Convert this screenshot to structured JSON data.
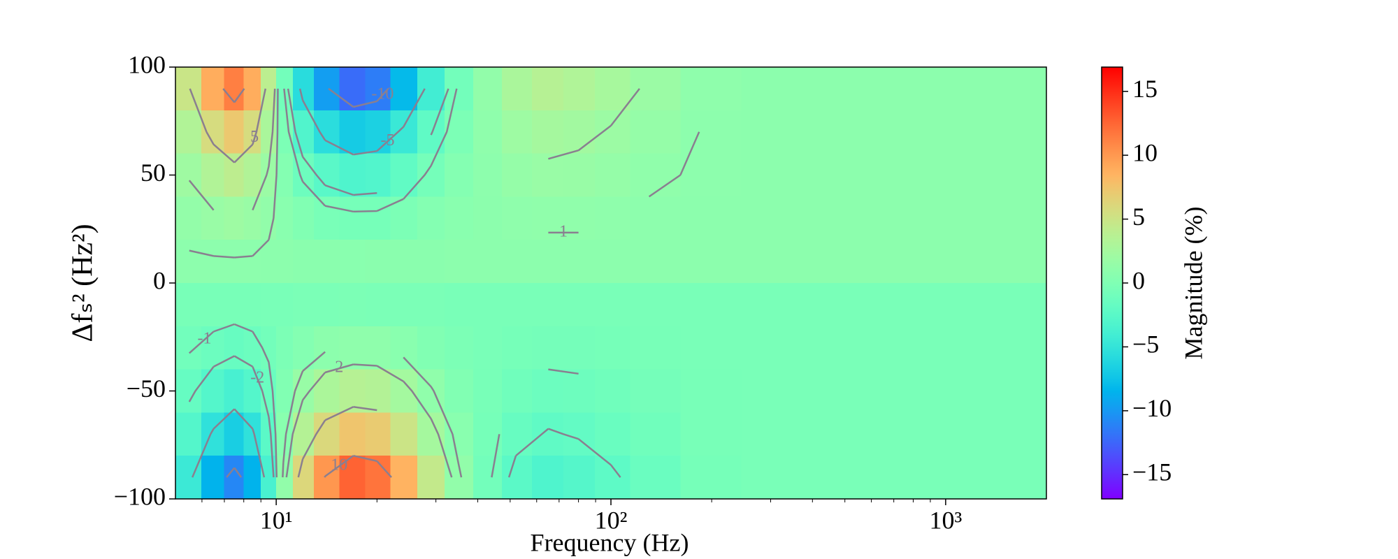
{
  "chart_data": {
    "type": "contour",
    "x_label": "Frequency (Hz)",
    "y_label": "Δfₛ² (Hz²)",
    "colorbar_label": "Magnitude (%)",
    "log_x": true,
    "colormap": "rainbow",
    "contour_color": "#8a7f90",
    "xlim": [
      5,
      2000
    ],
    "ylim": [
      -100,
      100
    ],
    "xticks": [
      {
        "value": 10,
        "label": "10¹"
      },
      {
        "value": 100,
        "label": "10²"
      },
      {
        "value": 1000,
        "label": "10³"
      }
    ],
    "xminorticks": [
      6,
      7,
      8,
      9,
      20,
      30,
      40,
      50,
      60,
      70,
      80,
      90,
      200,
      300,
      400,
      500,
      600,
      700,
      800,
      900
    ],
    "yticks": [
      {
        "value": -100,
        "label": "−100"
      },
      {
        "value": -50,
        "label": "−50"
      },
      0,
      50,
      100
    ],
    "zlim": [
      -16.9,
      16.9
    ],
    "zticks": [
      {
        "value": -15,
        "label": "−15"
      },
      {
        "value": -10,
        "label": "−10"
      },
      {
        "value": -5,
        "label": "−5"
      },
      0,
      5,
      10,
      15
    ],
    "contour_levels": [
      -10,
      -5,
      -2,
      -1,
      1,
      2,
      5,
      10
    ],
    "x": [
      5.5,
      6.5,
      7.5,
      8.5,
      9.5,
      10.5,
      12,
      14,
      17,
      20,
      24,
      29,
      35,
      43,
      52,
      65,
      80,
      100,
      130,
      200,
      300,
      700,
      1500
    ],
    "y": [
      90,
      70,
      50,
      30,
      10,
      -10,
      -30,
      -50,
      -70,
      -90
    ],
    "z": [
      [
        4.9,
        8.9,
        11.3,
        8.9,
        4.0,
        -0.8,
        -5.7,
        -9.7,
        -12.2,
        -11.4,
        -8.1,
        -4.1,
        -0.8,
        1.2,
        2.8,
        3.6,
        3.2,
        2.6,
        1.8,
        1.0,
        0.8,
        0.8,
        0.8
      ],
      [
        3.3,
        5.7,
        7.2,
        5.7,
        2.8,
        -0.2,
        -3.1,
        -5.6,
        -7.0,
        -6.6,
        -4.6,
        -2.1,
        -0.2,
        1.0,
        2.0,
        2.5,
        2.3,
        1.9,
        1.4,
        0.9,
        0.8,
        0.8,
        0.8
      ],
      [
        2.1,
        3.3,
        4.1,
        3.3,
        1.8,
        0.3,
        -1.2,
        -2.5,
        -3.2,
        -3.0,
        -2.0,
        -0.7,
        0.3,
        0.9,
        1.4,
        1.7,
        1.6,
        1.4,
        1.1,
        0.9,
        0.8,
        0.8,
        0.8
      ],
      [
        1.3,
        1.7,
        2.0,
        1.7,
        1.2,
        0.6,
        0.1,
        -0.4,
        -0.6,
        -0.6,
        -0.2,
        0.3,
        0.6,
        0.8,
        1.0,
        1.1,
        1.1,
        1.0,
        0.9,
        0.8,
        0.8,
        0.8,
        0.8
      ],
      [
        0.9,
        0.9,
        0.9,
        0.9,
        0.8,
        0.8,
        0.7,
        0.7,
        0.6,
        0.7,
        0.7,
        0.7,
        0.8,
        0.8,
        0.8,
        0.8,
        0.8,
        0.8,
        0.8,
        0.8,
        0.8,
        0.8,
        0.8
      ],
      [
        -0.5,
        -0.5,
        -0.5,
        -0.5,
        -0.4,
        -0.4,
        -0.3,
        -0.3,
        -0.2,
        -0.3,
        -0.3,
        -0.3,
        -0.4,
        -0.4,
        -0.4,
        -0.4,
        -0.4,
        -0.4,
        -0.4,
        -0.4,
        -0.4,
        -0.4,
        -0.4
      ],
      [
        -0.9,
        -1.3,
        -1.6,
        -1.3,
        -0.8,
        -0.2,
        0.3,
        0.8,
        1.0,
        1.0,
        0.6,
        0.1,
        -0.2,
        -0.4,
        -0.6,
        -0.7,
        -0.7,
        -0.6,
        -0.5,
        -0.4,
        -0.4,
        -0.4,
        -0.4
      ],
      [
        -1.7,
        -2.9,
        -3.7,
        -2.9,
        -1.4,
        0.1,
        1.6,
        2.9,
        3.6,
        3.4,
        2.4,
        1.1,
        0.1,
        -0.5,
        -1.0,
        -1.3,
        -1.2,
        -1.0,
        -0.7,
        -0.5,
        -0.4,
        -0.4,
        -0.4
      ],
      [
        -2.9,
        -5.3,
        -6.8,
        -5.3,
        -2.4,
        0.6,
        3.5,
        6.0,
        7.4,
        7.0,
        5.0,
        2.5,
        0.6,
        -0.6,
        -1.6,
        -2.1,
        -1.9,
        -1.5,
        -1.0,
        -0.5,
        -0.4,
        -0.4,
        -0.4
      ],
      [
        -4.5,
        -8.5,
        -10.9,
        -8.5,
        -3.6,
        1.2,
        6.1,
        10.1,
        12.6,
        11.8,
        8.5,
        4.5,
        1.2,
        -0.8,
        -2.4,
        -3.2,
        -2.8,
        -2.2,
        -1.4,
        -0.6,
        -0.4,
        -0.4,
        -0.4
      ]
    ]
  }
}
